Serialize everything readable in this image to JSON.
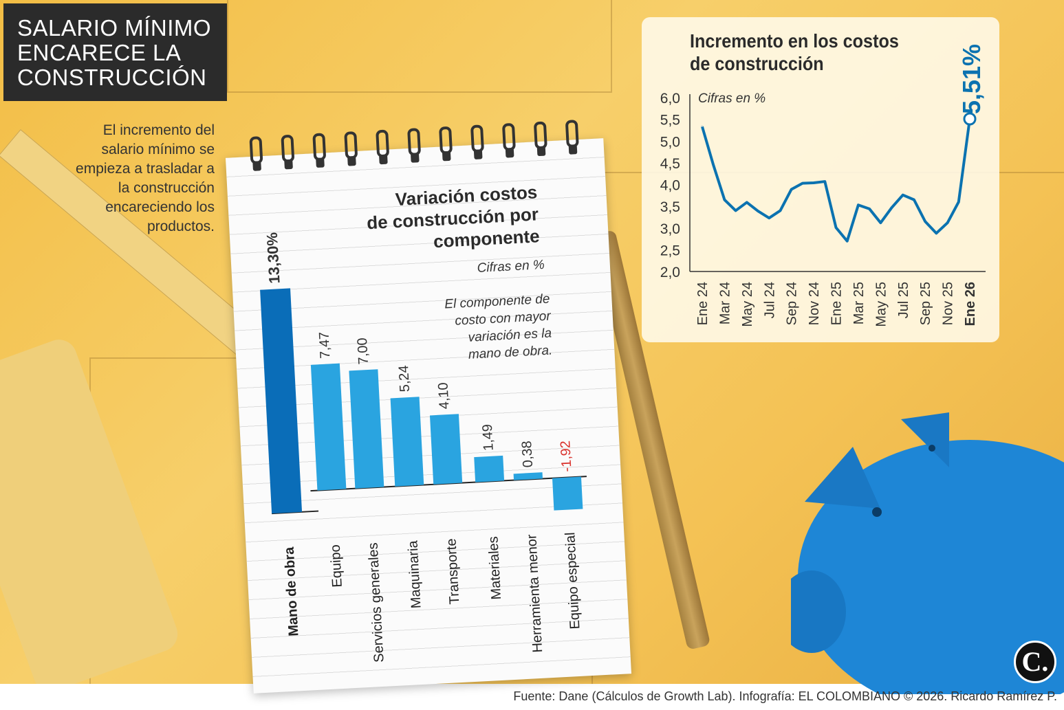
{
  "header": {
    "title_lines": [
      "SALARIO MÍNIMO",
      "ENCARECE LA",
      "CONSTRUCCIÓN"
    ]
  },
  "description": "El incremento del salario mínimo se empieza a trasladar a la construcción encareciendo los productos.",
  "footer": {
    "source": "Fuente: Dane (Cálculos de Growth Lab). Infografía: EL COLOMBIANO © 2026. Ricardo Ramírez P.",
    "logo": "C."
  },
  "colors": {
    "bar_highlight": "#0a6db8",
    "bar": "#2aa4e0",
    "line": "#0b72b0",
    "negative_label": "#d9302b",
    "background": "#f4c255"
  },
  "chart_data": [
    {
      "type": "bar",
      "title": "Variación costos de construcción por componente",
      "subtitle": "Cifras en %",
      "annotation": "El componente de costo con mayor variación es la mano de obra.",
      "categories": [
        "Mano de obra",
        "Equipo",
        "Servicios generales",
        "Maquinaria",
        "Transporte",
        "Materiales",
        "Herramienta menor",
        "Equipo especial"
      ],
      "values": [
        13.3,
        7.47,
        7.0,
        5.24,
        4.1,
        1.49,
        0.38,
        -1.92
      ],
      "labels": [
        "13,30%",
        "7,47",
        "7,00",
        "5,24",
        "4,10",
        "1,49",
        "0,38",
        "-1,92"
      ]
    },
    {
      "type": "line",
      "title": "Incremento en los costos de construcción",
      "subtitle": "Cifras en %",
      "x": [
        "Ene 24",
        "Feb 24",
        "Mar 24",
        "Abr 24",
        "May 24",
        "Jun 24",
        "Jul 24",
        "Ago 24",
        "Sep 24",
        "Oct 24",
        "Nov 24",
        "Dic 24",
        "Ene 25",
        "Feb 25",
        "Mar 25",
        "Abr 25",
        "May 25",
        "Jun 25",
        "Jul 25",
        "Ago 25",
        "Sep 25",
        "Oct 25",
        "Nov 25",
        "Dic 25",
        "Ene 26"
      ],
      "y": [
        5.33,
        4.45,
        3.65,
        3.4,
        3.59,
        3.39,
        3.23,
        3.4,
        3.89,
        4.03,
        4.04,
        4.07,
        3.01,
        2.7,
        3.53,
        3.44,
        3.12,
        3.47,
        3.76,
        3.65,
        3.15,
        2.88,
        3.12,
        3.6,
        5.51
      ],
      "x_tick_labels": [
        "Ene 24",
        "Mar 24",
        "May 24",
        "Jul 24",
        "Sep 24",
        "Nov 24",
        "Ene 25",
        "Mar 25",
        "May 25",
        "Jul 25",
        "Sep 25",
        "Nov 25",
        "Ene 26"
      ],
      "y_ticks": [
        "6,0",
        "5,5",
        "5,0",
        "4,5",
        "4,0",
        "3,5",
        "3,0",
        "2,5",
        "2,0"
      ],
      "ylim": [
        2.0,
        6.0
      ],
      "grid": false,
      "highlight_label": "5,51%"
    }
  ]
}
